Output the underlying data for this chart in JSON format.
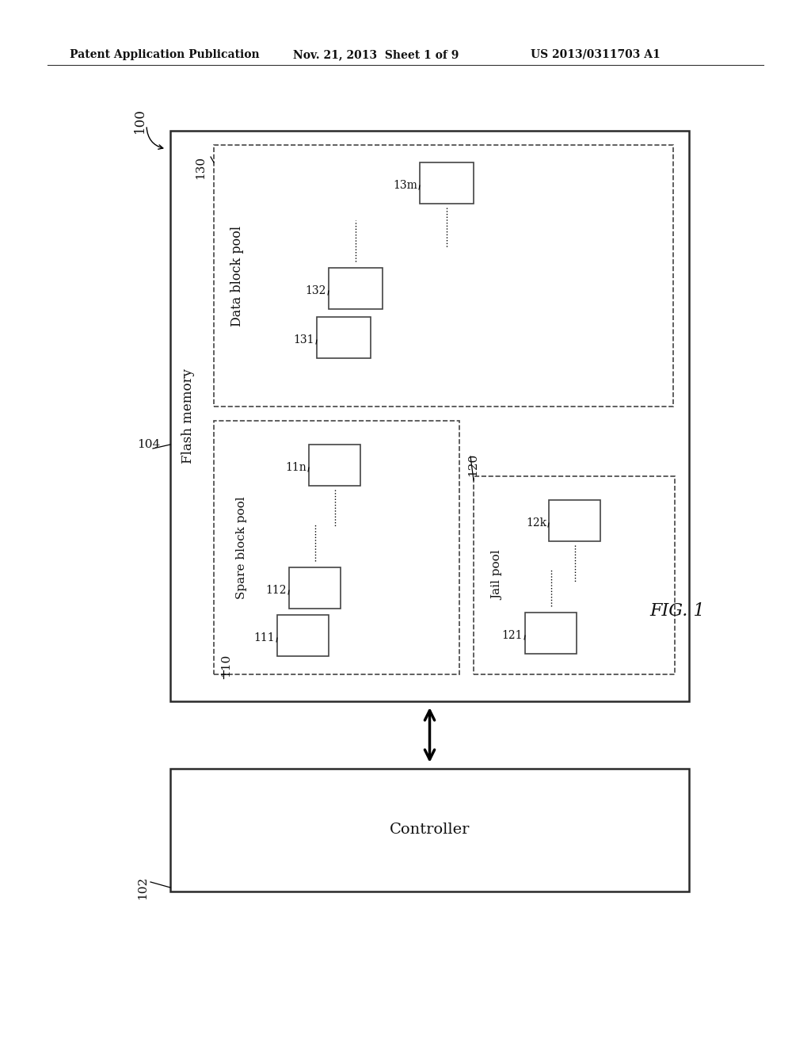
{
  "bg_color": "#ffffff",
  "header_left": "Patent Application Publication",
  "header_mid": "Nov. 21, 2013  Sheet 1 of 9",
  "header_right": "US 2013/0311703 A1",
  "fig_label": "FIG. 1",
  "label_100": "100",
  "label_102": "102",
  "label_104": "104",
  "label_110": "110",
  "label_111": "111",
  "label_112": "112",
  "label_11n": "11n",
  "label_120": "120",
  "label_121": "121",
  "label_12k": "12k",
  "label_130": "130",
  "label_131": "131",
  "label_132": "132",
  "label_13m": "13m",
  "text_flash_memory": "Flash memory",
  "text_spare_block_pool": "Spare block pool",
  "text_jail_pool": "Jail pool",
  "text_data_block_pool": "Data block pool",
  "text_controller": "Controller"
}
